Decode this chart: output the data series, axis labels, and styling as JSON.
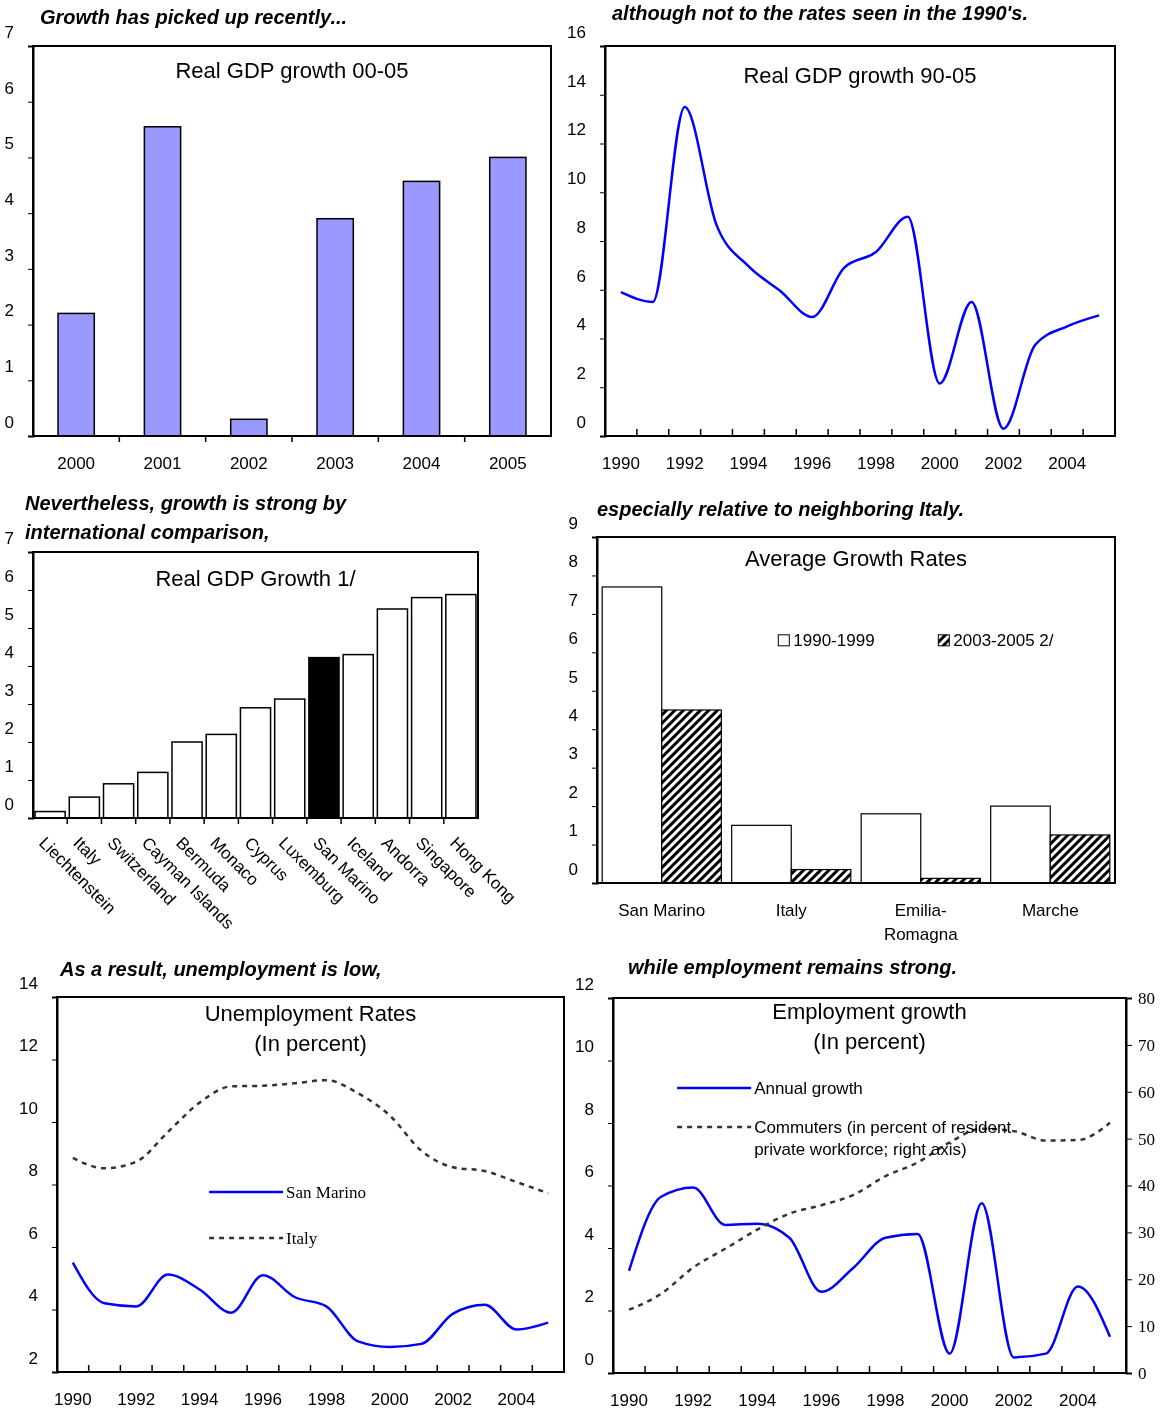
{
  "chart_data": [
    {
      "type": "bar",
      "title": "Growth has picked up recently...",
      "subtitle": "Real GDP growth 00-05",
      "categories": [
        "2000",
        "2001",
        "2002",
        "2003",
        "2004",
        "2005"
      ],
      "values": [
        2.2,
        5.55,
        0.3,
        3.9,
        4.57,
        5.0
      ],
      "color": "#9999ff",
      "ylim": [
        0,
        7
      ],
      "yticks": [
        0,
        1,
        2,
        3,
        4,
        5,
        6,
        7
      ]
    },
    {
      "type": "line",
      "title": "although not to the rates seen in the 1990's.",
      "subtitle": "Real GDP growth 90-05",
      "categories": [
        "1990",
        null,
        "1992",
        null,
        "1994",
        null,
        "1996",
        null,
        "1998",
        null,
        "2000",
        null,
        "2002",
        null,
        "2004",
        null
      ],
      "series": [
        {
          "color": "#0000ff",
          "values": [
            5.9,
            5.5,
            13.5,
            8.65,
            6.97,
            5.95,
            4.88,
            6.9,
            7.55,
            9.0,
            2.15,
            5.5,
            0.3,
            3.75,
            4.5,
            4.95
          ]
        }
      ],
      "ylim": [
        0,
        16
      ],
      "yticks": [
        0,
        2,
        4,
        6,
        8,
        10,
        12,
        14,
        16
      ]
    },
    {
      "type": "bar",
      "title": "Nevertheless, growth is strong by international comparison,",
      "subtitle": "Real GDP Growth 1/",
      "categories": [
        "Liechtenstein",
        "Italy",
        "Switzerland",
        "Cayman Islands",
        "Bermuda",
        "Monaco",
        "Cyprus",
        "Luxemburg",
        "San Marino",
        "Iceland",
        "Andorra",
        "Singapore",
        "Hong Kong"
      ],
      "values": [
        0.17,
        0.55,
        0.9,
        1.2,
        2.0,
        2.2,
        2.9,
        3.13,
        4.22,
        4.3,
        5.5,
        5.8,
        5.88
      ],
      "colors": [
        "#ffffff",
        "#ffffff",
        "#ffffff",
        "#ffffff",
        "#ffffff",
        "#ffffff",
        "#ffffff",
        "#ffffff",
        "#000000",
        "#ffffff",
        "#ffffff",
        "#ffffff",
        "#ffffff"
      ],
      "ylim": [
        0,
        7
      ],
      "yticks": [
        0,
        1,
        2,
        3,
        4,
        5,
        6,
        7
      ]
    },
    {
      "type": "bar",
      "title": "especially relative to neighboring Italy.",
      "subtitle": "Average Growth Rates",
      "categories": [
        "San Marino",
        "Italy",
        "Emilia-Romagna",
        "Marche"
      ],
      "series": [
        {
          "name": "1990-1999",
          "color": "#ffffff",
          "values": [
            7.7,
            1.5,
            1.8,
            2.0
          ]
        },
        {
          "name": "2003-2005 2/",
          "color": "#000000",
          "values": [
            4.5,
            0.35,
            0.12,
            1.25
          ]
        }
      ],
      "ylim": [
        0,
        9
      ],
      "yticks": [
        0,
        1,
        2,
        3,
        4,
        5,
        6,
        7,
        8,
        9
      ],
      "legend": "top"
    },
    {
      "type": "line",
      "title": "As a result, unemployment is low,",
      "subtitle": "Unemployment Rates (In percent)",
      "categories": [
        "1990",
        null,
        "1992",
        null,
        "1994",
        null,
        "1996",
        null,
        "1998",
        null,
        "2000",
        null,
        "2002",
        null,
        "2004",
        null
      ],
      "series": [
        {
          "name": "San Marino",
          "color": "#0000ff",
          "values": [
            5.5,
            4.2,
            4.1,
            5.12,
            4.64,
            3.9,
            5.1,
            4.4,
            4.1,
            2.98,
            2.8,
            2.9,
            3.87,
            4.15,
            3.36,
            3.58
          ]
        },
        {
          "name": "Italy",
          "color": "#333333",
          "line_style": "dashed",
          "values": [
            8.85,
            8.52,
            8.73,
            9.68,
            10.62,
            11.14,
            11.16,
            11.24,
            11.34,
            10.92,
            10.21,
            9.08,
            8.55,
            8.43,
            8.08,
            7.72
          ]
        }
      ],
      "ylim": [
        2,
        14
      ],
      "yticks": [
        2,
        4,
        6,
        8,
        10,
        12,
        14
      ],
      "legend": "center"
    },
    {
      "type": "line",
      "title": "while employment remains strong.",
      "subtitle": "Employment growth (In percent)",
      "categories": [
        "1990",
        null,
        "1992",
        null,
        "1994",
        null,
        "1996",
        null,
        "1998",
        null,
        "2000",
        null,
        "2002",
        null,
        "2004",
        null
      ],
      "series": [
        {
          "name": "Annual growth",
          "color": "#0000ff",
          "values": [
            3.27,
            5.64,
            5.94,
            4.74,
            4.78,
            4.33,
            2.6,
            3.37,
            4.33,
            4.45,
            0.62,
            5.43,
            0.5,
            0.62,
            2.77,
            1.16
          ]
        },
        {
          "name": "Commuters (in percent of resident private workforce; right axis)",
          "color": "#333333",
          "line_style": "dashed",
          "axis": "y2",
          "values": [
            13.5,
            16.9,
            22.5,
            26.5,
            30.6,
            34,
            35.8,
            38,
            42,
            44.9,
            49.2,
            52.1,
            51.6,
            49.6,
            49.7,
            53.4
          ]
        }
      ],
      "ylim": [
        0,
        12
      ],
      "yticks": [
        0,
        2,
        4,
        6,
        8,
        10,
        12
      ],
      "y2lim": [
        0,
        80
      ],
      "y2ticks": [
        0,
        10,
        20,
        30,
        40,
        50,
        60,
        70,
        80
      ],
      "legend": "top left"
    }
  ]
}
